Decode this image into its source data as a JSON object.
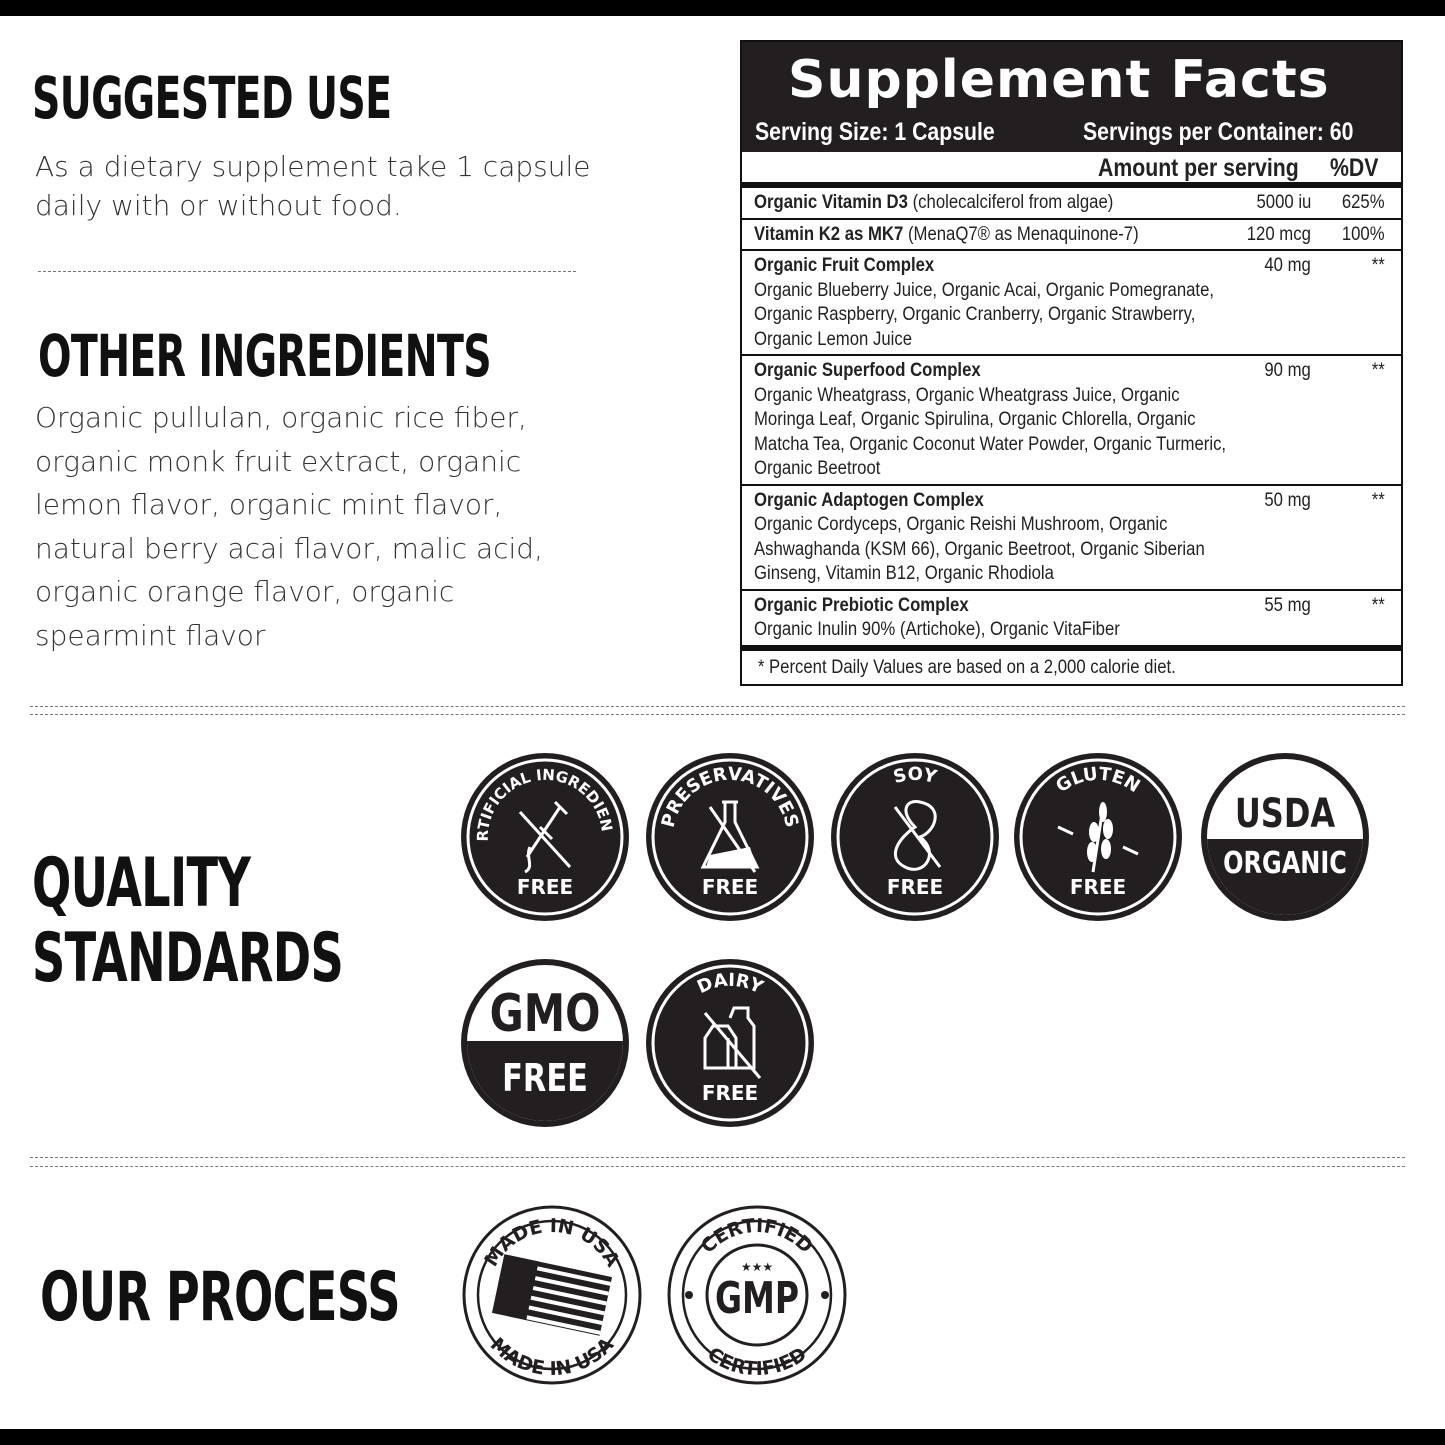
{
  "suggested_use": {
    "heading": "SUGGESTED USE",
    "lines": [
      "As a dietary supplement take 1 capsule",
      "daily with or without food."
    ]
  },
  "other_ingredients": {
    "heading": "OTHER INGREDIENTS",
    "lines": [
      "Organic pullulan, organic rice fiber,",
      "organic monk fruit extract, organic",
      "lemon flavor, organic mint flavor,",
      "natural berry acai flavor, malic acid,",
      "organic orange flavor, organic",
      "spearmint flavor"
    ]
  },
  "supplement_facts": {
    "title": "Supplement Facts",
    "serving_size": "Serving Size: 1 Capsule",
    "servings_per_container": "Servings per Container: 60",
    "amount_header": "Amount per serving",
    "dv_header": "%DV",
    "rows": [
      {
        "name": "Organic Vitamin D3",
        "detail": " (cholecalciferol from algae)",
        "amount": "5000 iu",
        "dv": "625%",
        "lines": []
      },
      {
        "name": "Vitamin K2 as MK7",
        "detail": " (MenaQ7® as Menaquinone-7)",
        "amount": "120 mcg",
        "dv": "100%",
        "lines": []
      },
      {
        "name": "Organic Fruit Complex",
        "detail": "",
        "amount": "40 mg",
        "dv": "**",
        "lines": [
          "Organic Blueberry Juice, Organic Acai, Organic Pomegranate,",
          "Organic Raspberry, Organic Cranberry, Organic Strawberry,",
          "Organic Lemon Juice"
        ]
      },
      {
        "name": "Organic Superfood Complex",
        "detail": "",
        "amount": "90 mg",
        "dv": "**",
        "lines": [
          "Organic Wheatgrass, Organic Wheatgrass Juice, Organic",
          "Moringa Leaf, Organic Spirulina, Organic Chlorella, Organic",
          "Matcha Tea, Organic Coconut Water Powder, Organic Turmeric,",
          "Organic Beetroot"
        ]
      },
      {
        "name": "Organic Adaptogen Complex",
        "detail": "",
        "amount": "50 mg",
        "dv": "**",
        "lines": [
          "Organic Cordyceps, Organic Reishi Mushroom, Organic",
          "Ashwaghanda (KSM 66), Organic Beetroot, Organic Siberian",
          "Ginseng, Vitamin B12, Organic Rhodiola"
        ]
      },
      {
        "name": "Organic Prebiotic Complex",
        "detail": "",
        "amount": "55 mg",
        "dv": "**",
        "lines": [
          "Organic Inulin 90% (Artichoke), Organic VitaFiber"
        ]
      }
    ],
    "footnote": "* Percent Daily Values are based on a 2,000 calorie diet."
  },
  "quality_standards": {
    "heading_lines": [
      "QUALITY",
      "STANDARDS"
    ],
    "badges": [
      {
        "top": "ARTIFICIAL INGREDIENTS",
        "bottom": "FREE",
        "icon": "dropper-icon"
      },
      {
        "top": "PRESERVATIVES",
        "bottom": "FREE",
        "icon": "flask-icon"
      },
      {
        "top": "SOY",
        "bottom": "FREE",
        "icon": "bean-icon"
      },
      {
        "top": "GLUTEN",
        "bottom": "FREE",
        "icon": "wheat-icon"
      },
      {
        "top": "USDA",
        "bottom": "ORGANIC",
        "icon": "usda-organic-seal"
      },
      {
        "top": "GMO",
        "bottom": "FREE",
        "icon": "gmo-free-seal"
      },
      {
        "top": "DAIRY",
        "bottom": "FREE",
        "icon": "milk-carton-icon"
      }
    ]
  },
  "our_process": {
    "heading": "OUR PROCESS",
    "badges": [
      {
        "top": "MADE IN USA",
        "bottom": "MADE IN USA",
        "icon": "us-flag-icon"
      },
      {
        "top": "CERTIFIED",
        "center": "GMP",
        "bottom": "CERTIFIED",
        "icon": "gmp-seal"
      }
    ]
  },
  "colors": {
    "ink": "#231f20",
    "background": "#ffffff"
  }
}
